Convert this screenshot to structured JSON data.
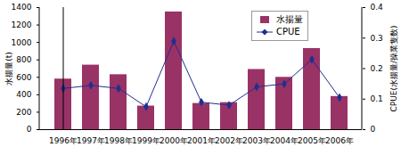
{
  "chart_data": {
    "type": "bar",
    "categories": [
      "1996年",
      "1997年",
      "1998年",
      "1999年",
      "2000年",
      "2001年",
      "2002年",
      "2003年",
      "2004年",
      "2005年",
      "2006年"
    ],
    "series": [
      {
        "name": "水揚量",
        "type": "bar",
        "color": "#993366",
        "values": [
          580,
          740,
          630,
          270,
          1350,
          300,
          310,
          690,
          600,
          930,
          380
        ]
      },
      {
        "name": "CPUE",
        "type": "line",
        "color": "#1f2f8f",
        "marker": "diamond",
        "axis": "y2",
        "values": [
          0.135,
          0.145,
          0.135,
          0.075,
          0.29,
          0.09,
          0.08,
          0.14,
          0.15,
          0.23,
          0.105
        ]
      }
    ],
    "ylabel": "水揚量(t)",
    "y2label": "CPUE(水揚量/操業隻数)",
    "ylim": [
      0,
      1400
    ],
    "yticks": [
      0,
      200,
      400,
      600,
      800,
      1000,
      1200,
      1400
    ],
    "y2lim": [
      0,
      0.4
    ],
    "y2ticks": [
      0,
      0.1,
      0.2,
      0.3,
      0.4
    ],
    "legend": "upper right",
    "grid": false
  }
}
